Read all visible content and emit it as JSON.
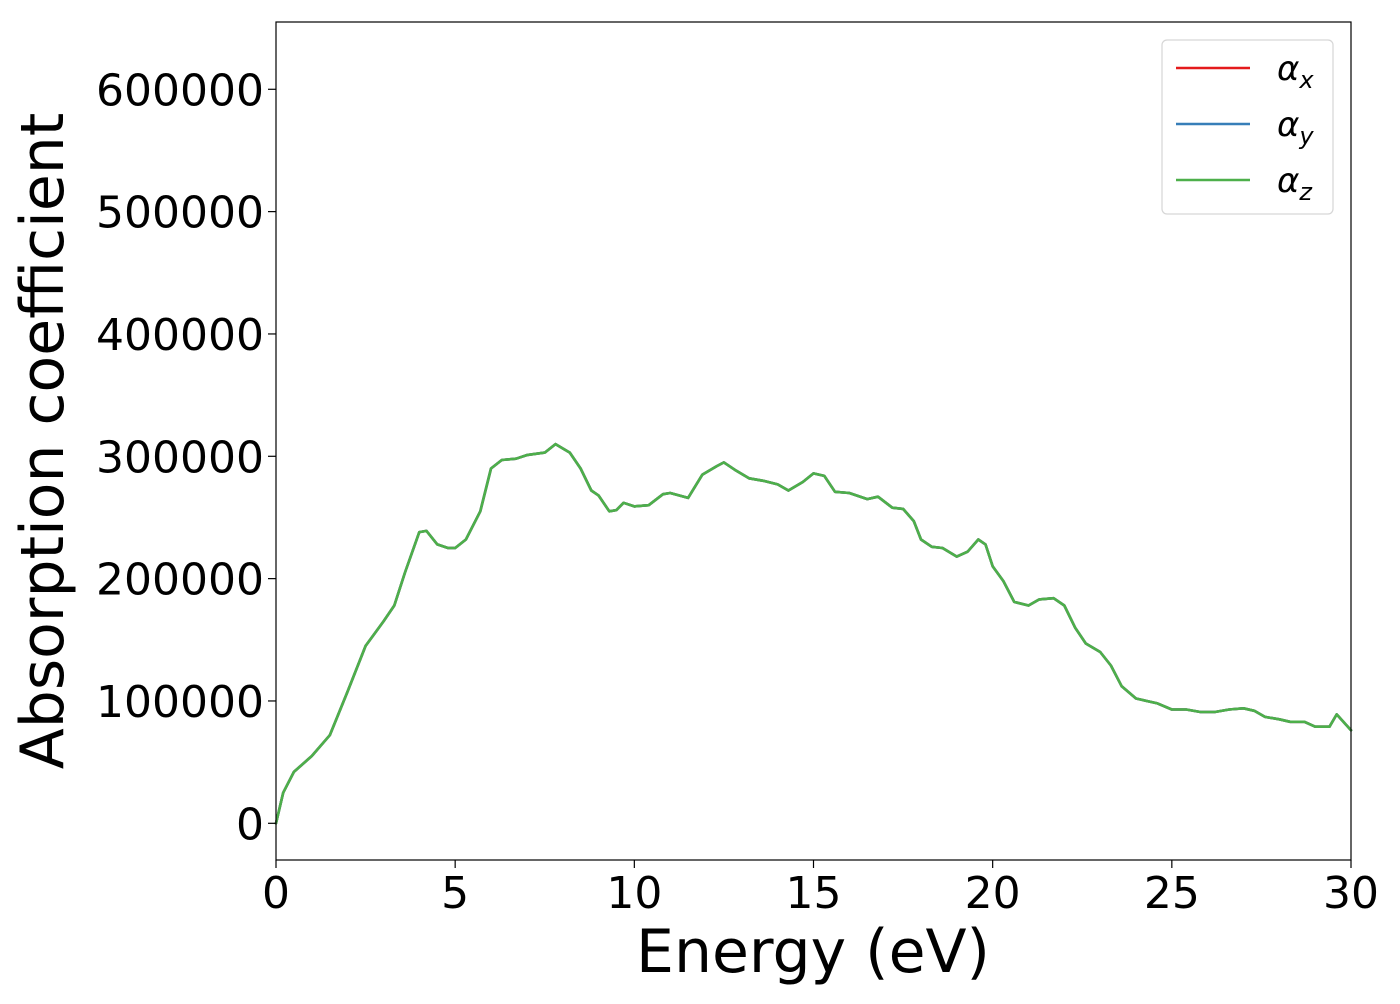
{
  "chart_data": {
    "type": "line",
    "title": "",
    "xlabel": "Energy (eV)",
    "ylabel": "Absorption coefficient",
    "xlim": [
      0,
      30
    ],
    "ylim": [
      -30000,
      655000
    ],
    "xticks": [
      0,
      5,
      10,
      15,
      20,
      25,
      30
    ],
    "xtick_labels": [
      "0",
      "5",
      "10",
      "15",
      "20",
      "25",
      "30"
    ],
    "yticks": [
      0,
      100000,
      200000,
      300000,
      400000,
      500000,
      600000
    ],
    "ytick_labels": [
      "0",
      "100000",
      "200000",
      "300000",
      "400000",
      "500000",
      "600000"
    ],
    "grid": false,
    "legend_position": "top-right",
    "x": [
      0,
      0.2,
      0.5,
      1.0,
      1.5,
      2.0,
      2.5,
      3.0,
      3.3,
      3.6,
      4.0,
      4.2,
      4.5,
      4.8,
      5.0,
      5.3,
      5.7,
      6.0,
      6.3,
      6.7,
      7.0,
      7.5,
      7.8,
      8.2,
      8.5,
      8.8,
      9.0,
      9.3,
      9.5,
      9.7,
      10.0,
      10.4,
      10.8,
      11.0,
      11.5,
      11.9,
      12.3,
      12.5,
      12.8,
      13.2,
      13.6,
      14.0,
      14.3,
      14.7,
      15.0,
      15.3,
      15.6,
      16.0,
      16.5,
      16.8,
      17.2,
      17.5,
      17.8,
      18.0,
      18.3,
      18.6,
      19.0,
      19.3,
      19.6,
      19.8,
      20.0,
      20.3,
      20.6,
      21.0,
      21.3,
      21.7,
      22.0,
      22.3,
      22.6,
      23.0,
      23.3,
      23.6,
      24.0,
      24.3,
      24.6,
      25.0,
      25.4,
      25.8,
      26.2,
      26.6,
      27.0,
      27.3,
      27.6,
      28.0,
      28.3,
      28.7,
      29.0,
      29.4,
      29.6,
      30.0
    ],
    "series": [
      {
        "name": "αx",
        "color": "#e41a1c",
        "y": [
          0,
          25000,
          42000,
          55000,
          72000,
          108000,
          145000,
          165000,
          178000,
          205000,
          238000,
          239000,
          228000,
          225000,
          225000,
          232000,
          255000,
          290000,
          297000,
          298000,
          301000,
          303000,
          310000,
          303000,
          290000,
          272000,
          268000,
          255000,
          256000,
          262000,
          259000,
          260000,
          269000,
          270000,
          266000,
          285000,
          292000,
          295000,
          289000,
          282000,
          280000,
          277000,
          272000,
          279000,
          286000,
          284000,
          271000,
          270000,
          265000,
          267000,
          258000,
          257000,
          247000,
          232000,
          226000,
          225000,
          218000,
          222000,
          232000,
          228000,
          210000,
          198000,
          181000,
          178000,
          183000,
          184000,
          178000,
          160000,
          147000,
          140000,
          129000,
          112000,
          102000,
          100000,
          98000,
          93000,
          93000,
          91000,
          91000,
          93000,
          94000,
          92000,
          87000,
          85000,
          83000,
          83000,
          79000,
          79000,
          89000,
          76000
        ]
      },
      {
        "name": "αy",
        "color": "#377eb8",
        "y": [
          0,
          25000,
          42000,
          55000,
          72000,
          108000,
          145000,
          165000,
          178000,
          205000,
          238000,
          239000,
          228000,
          225000,
          225000,
          232000,
          255000,
          290000,
          297000,
          298000,
          301000,
          303000,
          310000,
          303000,
          290000,
          272000,
          268000,
          255000,
          256000,
          262000,
          259000,
          260000,
          269000,
          270000,
          266000,
          285000,
          292000,
          295000,
          289000,
          282000,
          280000,
          277000,
          272000,
          279000,
          286000,
          284000,
          271000,
          270000,
          265000,
          267000,
          258000,
          257000,
          247000,
          232000,
          226000,
          225000,
          218000,
          222000,
          232000,
          228000,
          210000,
          198000,
          181000,
          178000,
          183000,
          184000,
          178000,
          160000,
          147000,
          140000,
          129000,
          112000,
          102000,
          100000,
          98000,
          93000,
          93000,
          91000,
          91000,
          93000,
          94000,
          92000,
          87000,
          85000,
          83000,
          83000,
          79000,
          79000,
          89000,
          76000
        ]
      },
      {
        "name": "αz",
        "color": "#4daf4a",
        "y": [
          0,
          25000,
          42000,
          55000,
          72000,
          108000,
          145000,
          165000,
          178000,
          205000,
          238000,
          239000,
          228000,
          225000,
          225000,
          232000,
          255000,
          290000,
          297000,
          298000,
          301000,
          303000,
          310000,
          303000,
          290000,
          272000,
          268000,
          255000,
          256000,
          262000,
          259000,
          260000,
          269000,
          270000,
          266000,
          285000,
          292000,
          295000,
          289000,
          282000,
          280000,
          277000,
          272000,
          279000,
          286000,
          284000,
          271000,
          270000,
          265000,
          267000,
          258000,
          257000,
          247000,
          232000,
          226000,
          225000,
          218000,
          222000,
          232000,
          228000,
          210000,
          198000,
          181000,
          178000,
          183000,
          184000,
          178000,
          160000,
          147000,
          140000,
          129000,
          112000,
          102000,
          100000,
          98000,
          93000,
          93000,
          91000,
          91000,
          93000,
          94000,
          92000,
          87000,
          85000,
          83000,
          83000,
          79000,
          79000,
          89000,
          76000
        ]
      }
    ],
    "legend": [
      {
        "symbol": "α",
        "sub": "x",
        "color": "#e41a1c"
      },
      {
        "symbol": "α",
        "sub": "y",
        "color": "#377eb8"
      },
      {
        "symbol": "α",
        "sub": "z",
        "color": "#4daf4a"
      }
    ]
  }
}
